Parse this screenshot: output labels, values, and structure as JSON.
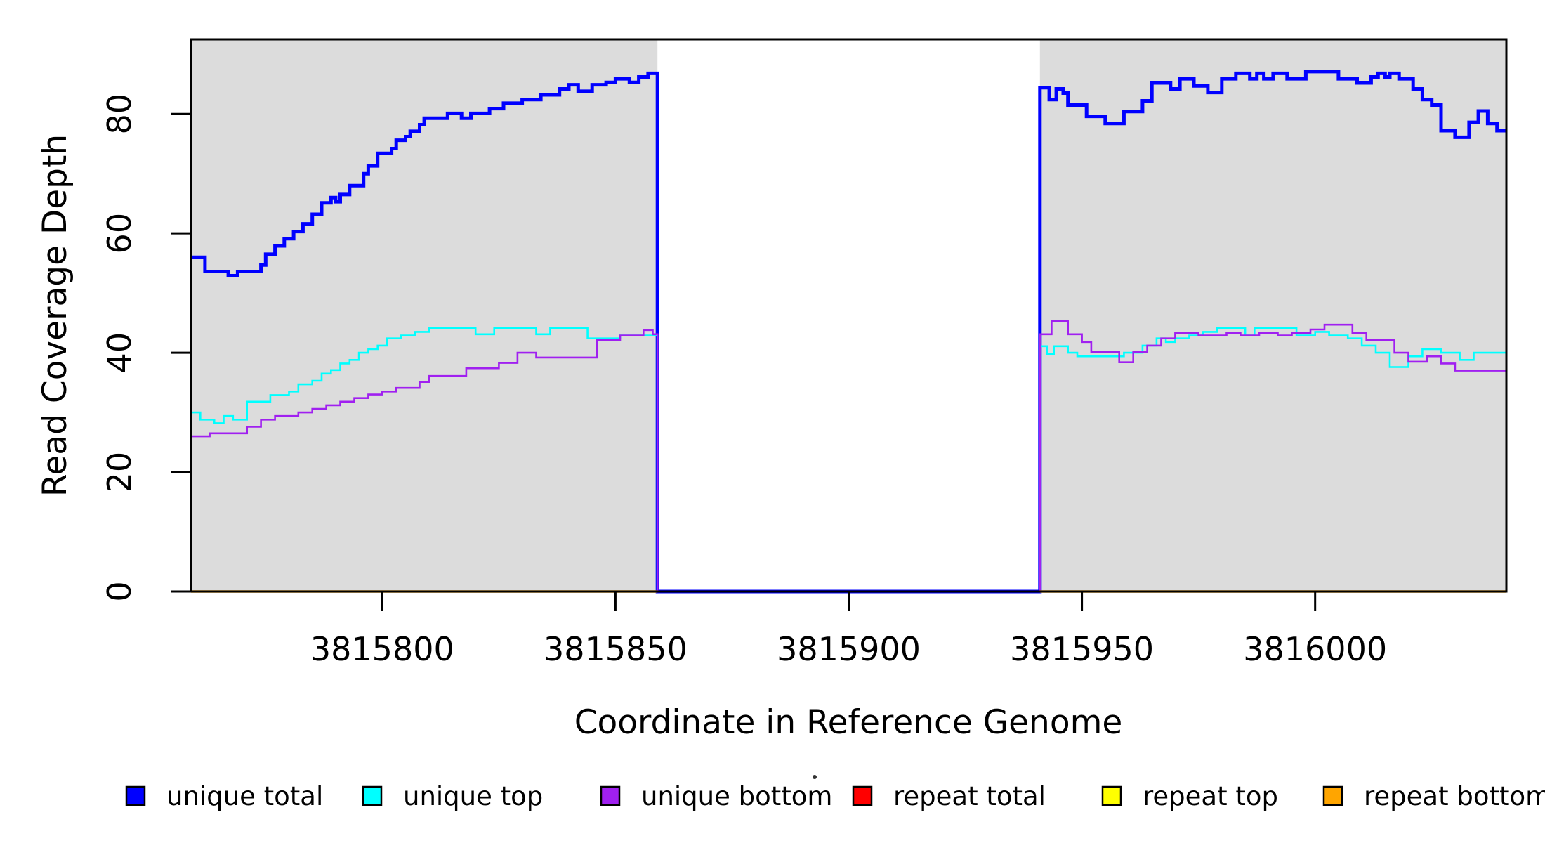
{
  "chart_data": {
    "type": "line",
    "subtype": "step-coverage-plot",
    "title": "",
    "xlabel": "Coordinate in Reference Genome",
    "ylabel": "Read Coverage Depth",
    "xlim": [
      3815759,
      3816041
    ],
    "ylim": [
      0,
      92.5
    ],
    "grid": false,
    "panel_color": "#DCDCDC",
    "background_color": "#FFFFFF",
    "shaded_regions": [
      {
        "x0": 3815759,
        "x1": 3815859
      },
      {
        "x0": 3815941,
        "x1": 3816041
      }
    ],
    "gap_region": {
      "x0": 3815859,
      "x1": 3815941
    },
    "x_ticks": [
      {
        "value": 3815800,
        "label": "3815800"
      },
      {
        "value": 3815850,
        "label": "3815850"
      },
      {
        "value": 3815900,
        "label": "3815900"
      },
      {
        "value": 3815950,
        "label": "3815950"
      },
      {
        "value": 3816000,
        "label": "3816000"
      }
    ],
    "y_ticks": [
      {
        "value": 0,
        "label": "0"
      },
      {
        "value": 20,
        "label": "20"
      },
      {
        "value": 40,
        "label": "40"
      },
      {
        "value": 60,
        "label": "60"
      },
      {
        "value": 80,
        "label": "80"
      }
    ],
    "series": [
      {
        "name": "unique total",
        "color": "#0000FF",
        "line_width": 5,
        "segments": [
          {
            "end": 3816041,
            "points": [
              [
                3815759,
                56
              ],
              [
                3815762,
                53.6
              ],
              [
                3815767,
                52.9
              ],
              [
                3815769,
                53.6
              ],
              [
                3815774,
                54.7
              ],
              [
                3815775,
                56.5
              ],
              [
                3815777,
                57.9
              ],
              [
                3815779,
                59.1
              ],
              [
                3815781,
                60.3
              ],
              [
                3815783,
                61.6
              ],
              [
                3815785,
                63.2
              ],
              [
                3815787,
                65.1
              ],
              [
                3815789,
                66.0
              ],
              [
                3815790,
                65.3
              ],
              [
                3815791,
                66.5
              ],
              [
                3815793,
                68.0
              ],
              [
                3815796,
                70.0
              ],
              [
                3815797,
                71.3
              ],
              [
                3815799,
                73.4
              ],
              [
                3815802,
                74.2
              ],
              [
                3815803,
                75.6
              ],
              [
                3815805,
                76.2
              ],
              [
                3815806,
                77.1
              ],
              [
                3815808,
                78.2
              ],
              [
                3815809,
                79.3
              ],
              [
                3815814,
                80.1
              ],
              [
                3815817,
                79.3
              ],
              [
                3815819,
                80.1
              ],
              [
                3815823,
                80.9
              ],
              [
                3815826,
                81.8
              ],
              [
                3815830,
                82.4
              ],
              [
                3815834,
                83.2
              ],
              [
                3815838,
                84.2
              ],
              [
                3815840,
                84.9
              ],
              [
                3815842,
                83.8
              ],
              [
                3815845,
                84.9
              ],
              [
                3815848,
                85.3
              ],
              [
                3815850,
                85.9
              ],
              [
                3815853,
                85.3
              ],
              [
                3815855,
                86.2
              ],
              [
                3815857,
                86.8
              ],
              [
                3815859,
                0
              ],
              [
                3815941,
                84.4
              ],
              [
                3815943,
                82.4
              ],
              [
                3815944.5,
                84.2
              ],
              [
                3815946,
                83.5
              ],
              [
                3815947,
                81.5
              ],
              [
                3815951,
                79.6
              ],
              [
                3815955,
                78.4
              ],
              [
                3815959,
                80.4
              ],
              [
                3815963,
                82.2
              ],
              [
                3815965,
                85.2
              ],
              [
                3815969,
                84.2
              ],
              [
                3815971,
                85.9
              ],
              [
                3815974,
                84.7
              ],
              [
                3815977,
                83.6
              ],
              [
                3815980,
                85.9
              ],
              [
                3815983,
                86.8
              ],
              [
                3815986,
                85.9
              ],
              [
                3815987.5,
                86.8
              ],
              [
                3815989,
                85.9
              ],
              [
                3815991,
                86.8
              ],
              [
                3815994,
                85.9
              ],
              [
                3815998,
                87.1
              ],
              [
                3816005,
                85.9
              ],
              [
                3816009,
                85.2
              ],
              [
                3816012,
                86.2
              ],
              [
                3816013.5,
                86.8
              ],
              [
                3816015,
                86.2
              ],
              [
                3816016,
                86.8
              ],
              [
                3816018,
                85.9
              ],
              [
                3816021,
                84.2
              ],
              [
                3816023,
                82.4
              ],
              [
                3816025,
                81.5
              ],
              [
                3816027,
                77.2
              ],
              [
                3816030,
                76.1
              ],
              [
                3816033,
                78.6
              ],
              [
                3816035,
                80.5
              ],
              [
                3816037,
                78.4
              ],
              [
                3816039,
                77.2
              ]
            ]
          }
        ]
      },
      {
        "name": "unique top",
        "color": "#00FFFF",
        "line_width": 2.6,
        "segments": [
          {
            "end": 3816041,
            "points": [
              [
                3815759,
                30
              ],
              [
                3815761,
                28.8
              ],
              [
                3815764,
                28.2
              ],
              [
                3815766,
                29.4
              ],
              [
                3815768,
                28.8
              ],
              [
                3815771,
                31.8
              ],
              [
                3815776,
                32.9
              ],
              [
                3815780,
                33.5
              ],
              [
                3815782,
                34.7
              ],
              [
                3815785,
                35.3
              ],
              [
                3815787,
                36.5
              ],
              [
                3815789,
                37.1
              ],
              [
                3815791,
                38.2
              ],
              [
                3815793,
                38.8
              ],
              [
                3815795,
                40
              ],
              [
                3815797,
                40.6
              ],
              [
                3815799,
                41.2
              ],
              [
                3815801,
                42.4
              ],
              [
                3815804,
                42.9
              ],
              [
                3815807,
                43.5
              ],
              [
                3815810,
                44.1
              ],
              [
                3815820,
                43.1
              ],
              [
                3815824,
                44.1
              ],
              [
                3815833,
                43.1
              ],
              [
                3815836,
                44.1
              ],
              [
                3815844,
                42.4
              ],
              [
                3815851,
                42.9
              ],
              [
                3815859,
                0
              ],
              [
                3815941,
                41.1
              ],
              [
                3815942.5,
                39.8
              ],
              [
                3815944,
                41.1
              ],
              [
                3815947,
                40
              ],
              [
                3815949,
                39.4
              ],
              [
                3815959,
                40
              ],
              [
                3815963,
                41.2
              ],
              [
                3815966,
                42.4
              ],
              [
                3815968,
                41.8
              ],
              [
                3815970,
                42.4
              ],
              [
                3815973,
                42.9
              ],
              [
                3815976,
                43.5
              ],
              [
                3815979,
                44.1
              ],
              [
                3815985,
                42.9
              ],
              [
                3815987,
                44.1
              ],
              [
                3815996,
                42.9
              ],
              [
                3816000,
                43.5
              ],
              [
                3816003,
                42.9
              ],
              [
                3816007,
                42.4
              ],
              [
                3816010,
                41.2
              ],
              [
                3816013,
                40
              ],
              [
                3816016,
                37.6
              ],
              [
                3816020,
                39.4
              ],
              [
                3816023,
                40.6
              ],
              [
                3816027,
                40
              ],
              [
                3816031,
                38.8
              ],
              [
                3816034,
                40
              ]
            ]
          }
        ]
      },
      {
        "name": "unique bottom",
        "color": "#A020F0",
        "line_width": 2.6,
        "segments": [
          {
            "end": 3816041,
            "points": [
              [
                3815759,
                26
              ],
              [
                3815763,
                26.5
              ],
              [
                3815771,
                27.6
              ],
              [
                3815774,
                28.8
              ],
              [
                3815777,
                29.4
              ],
              [
                3815782,
                30
              ],
              [
                3815785,
                30.6
              ],
              [
                3815788,
                31.2
              ],
              [
                3815791,
                31.8
              ],
              [
                3815794,
                32.4
              ],
              [
                3815797,
                33
              ],
              [
                3815800,
                33.5
              ],
              [
                3815803,
                34.1
              ],
              [
                3815808,
                35.1
              ],
              [
                3815810,
                36.1
              ],
              [
                3815818,
                37.4
              ],
              [
                3815825,
                38.3
              ],
              [
                3815829,
                40
              ],
              [
                3815833,
                39.2
              ],
              [
                3815846,
                42.1
              ],
              [
                3815851,
                42.9
              ],
              [
                3815856,
                43.8
              ],
              [
                3815858,
                43.1
              ],
              [
                3815859,
                0
              ],
              [
                3815941,
                43.1
              ],
              [
                3815943.5,
                45.3
              ],
              [
                3815947,
                43.1
              ],
              [
                3815950,
                41.8
              ],
              [
                3815952,
                40.1
              ],
              [
                3815958,
                38.4
              ],
              [
                3815961,
                40.1
              ],
              [
                3815964,
                41.2
              ],
              [
                3815967,
                42.4
              ],
              [
                3815970,
                43.3
              ],
              [
                3815975,
                42.9
              ],
              [
                3815981,
                43.3
              ],
              [
                3815984,
                42.9
              ],
              [
                3815988,
                43.3
              ],
              [
                3815992,
                42.9
              ],
              [
                3815995,
                43.3
              ],
              [
                3815999,
                43.9
              ],
              [
                3816002,
                44.7
              ],
              [
                3816008,
                43.3
              ],
              [
                3816011,
                42.1
              ],
              [
                3816017,
                40
              ],
              [
                3816020,
                38.5
              ],
              [
                3816024,
                39.4
              ],
              [
                3816027,
                38.2
              ],
              [
                3816030,
                37
              ]
            ]
          }
        ]
      },
      {
        "name": "repeat total",
        "color": "#FF0000",
        "line_width": 2.6,
        "segments": [
          {
            "end": 3815859,
            "points": [
              [
                3815759,
                0
              ]
            ]
          },
          {
            "end": 3816041,
            "points": [
              [
                3815941,
                0
              ]
            ]
          }
        ]
      },
      {
        "name": "repeat top",
        "color": "#FFFF00",
        "line_width": 2.6,
        "segments": [
          {
            "end": 3815859,
            "points": [
              [
                3815759,
                0
              ]
            ]
          },
          {
            "end": 3816041,
            "points": [
              [
                3815941,
                0
              ]
            ]
          }
        ]
      },
      {
        "name": "repeat bottom",
        "color": "#FFA500",
        "line_width": 3.6,
        "segments": [
          {
            "end": 3815859,
            "points": [
              [
                3815759,
                0
              ]
            ]
          },
          {
            "end": 3816041,
            "points": [
              [
                3815941,
                0
              ]
            ]
          }
        ]
      }
    ],
    "legend": {
      "position": "bottom",
      "items": [
        {
          "label": "unique total",
          "color": "#0000FF"
        },
        {
          "label": "unique top",
          "color": "#00FFFF"
        },
        {
          "label": "unique bottom",
          "color": "#A020F0"
        },
        {
          "label": "repeat total",
          "color": "#FF0000"
        },
        {
          "label": "repeat top",
          "color": "#FFFF00"
        },
        {
          "label": "repeat bottom",
          "color": "#FFA500"
        }
      ]
    }
  }
}
